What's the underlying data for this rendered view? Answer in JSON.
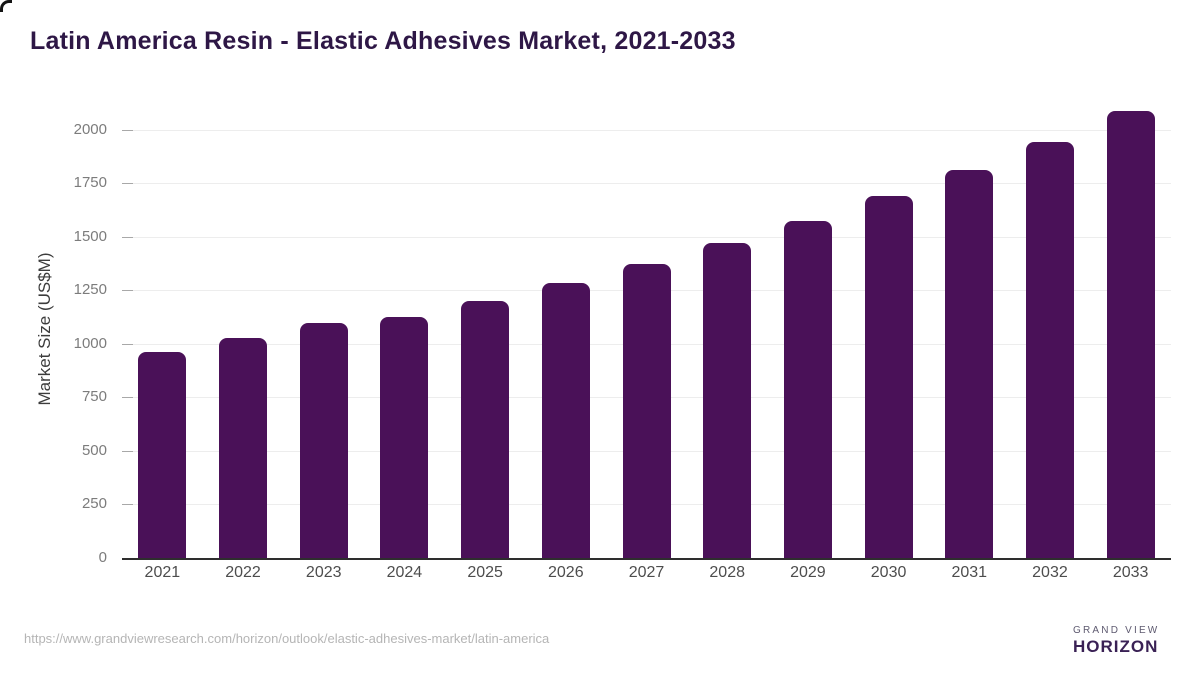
{
  "title": "Latin America Resin - Elastic Adhesives Market, 2021-2033",
  "footer": {
    "source_url": "https://www.grandviewresearch.com/horizon/outlook/elastic-adhesives-market/latin-america",
    "logo": {
      "line1": "GRAND VIEW",
      "line2": "HORIZON"
    }
  },
  "colors": {
    "bar": "#4a1158",
    "title_text": "#2e1746",
    "axis_line": "#2e2e2e",
    "gridline": "#ededed",
    "tick_mark": "#a8a8a8",
    "y_label_text": "#7c7c7c",
    "x_label_text": "#4d4d4d",
    "url_text": "#b5b5b5",
    "logo_dark": "#2b1a45",
    "logo_blue": "#5bc3ea"
  },
  "chart_data": {
    "type": "bar",
    "title": "Latin America Resin - Elastic Adhesives Market, 2021-2033",
    "categories": [
      "2021",
      "2022",
      "2023",
      "2024",
      "2025",
      "2026",
      "2027",
      "2028",
      "2029",
      "2030",
      "2031",
      "2032",
      "2033"
    ],
    "values": [
      960,
      1026,
      1098,
      1126,
      1200,
      1283,
      1371,
      1469,
      1573,
      1690,
      1811,
      1942,
      2087
    ],
    "xlabel": "",
    "ylabel": "Market Size (US$M)",
    "yticks": [
      0,
      250,
      500,
      750,
      1000,
      1250,
      1500,
      1750,
      2000
    ],
    "ylim": [
      0,
      2138
    ],
    "grid": true,
    "legend": false,
    "bar_color": "#4a1158"
  }
}
